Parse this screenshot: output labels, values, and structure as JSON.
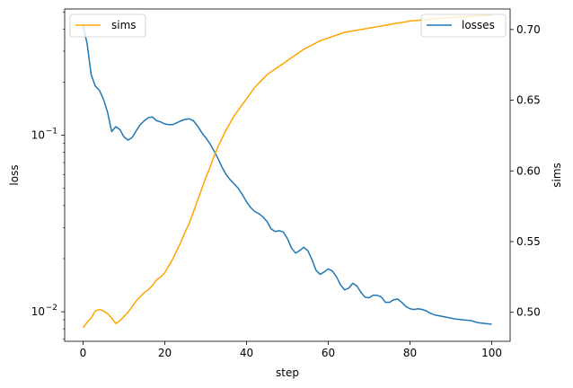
{
  "chart_data": {
    "type": "line",
    "title": "",
    "xlabel": "step",
    "ylabel_left": "loss",
    "ylabel_right": "sims",
    "xlim": [
      -4.5,
      104.5
    ],
    "xticks": [
      0,
      20,
      40,
      60,
      80,
      100
    ],
    "left_axis": {
      "scale": "log",
      "lim": [
        0.0068,
        0.52
      ],
      "major_ticks": [
        0.01,
        0.1
      ],
      "major_tick_labels": [
        "10^-2",
        "10^-1"
      ],
      "minor_ticks": [
        0.007,
        0.008,
        0.009,
        0.02,
        0.03,
        0.04,
        0.05,
        0.06,
        0.07,
        0.08,
        0.09,
        0.2,
        0.3,
        0.4,
        0.5
      ]
    },
    "right_axis": {
      "scale": "linear",
      "lim": [
        0.4795,
        0.7145
      ],
      "ticks": [
        0.5,
        0.55,
        0.6,
        0.65,
        0.7
      ],
      "tick_labels": [
        "0.50",
        "0.55",
        "0.60",
        "0.65",
        "0.70"
      ]
    },
    "grid": false,
    "series": [
      {
        "name": "losses",
        "axis": "left",
        "color": "#1f77b4",
        "x": [
          0,
          1,
          2,
          3,
          4,
          5,
          6,
          7,
          8,
          9,
          10,
          11,
          12,
          13,
          14,
          15,
          16,
          17,
          18,
          19,
          20,
          21,
          22,
          23,
          24,
          25,
          26,
          27,
          28,
          29,
          30,
          31,
          32,
          33,
          34,
          35,
          36,
          37,
          38,
          39,
          40,
          41,
          42,
          43,
          44,
          45,
          46,
          47,
          48,
          49,
          50,
          51,
          52,
          53,
          54,
          55,
          56,
          57,
          58,
          59,
          60,
          61,
          62,
          63,
          64,
          65,
          66,
          67,
          68,
          69,
          70,
          71,
          72,
          73,
          74,
          75,
          76,
          77,
          78,
          79,
          80,
          81,
          82,
          83,
          84,
          85,
          86,
          87,
          88,
          89,
          90,
          91,
          92,
          93,
          94,
          95,
          96,
          97,
          98,
          99,
          100
        ],
        "y": [
          0.42,
          0.33,
          0.22,
          0.19,
          0.18,
          0.16,
          0.135,
          0.105,
          0.112,
          0.108,
          0.098,
          0.094,
          0.097,
          0.106,
          0.115,
          0.121,
          0.126,
          0.127,
          0.121,
          0.119,
          0.116,
          0.115,
          0.115,
          0.118,
          0.121,
          0.123,
          0.124,
          0.121,
          0.113,
          0.104,
          0.097,
          0.09,
          0.082,
          0.074,
          0.066,
          0.06,
          0.056,
          0.053,
          0.05,
          0.046,
          0.042,
          0.039,
          0.037,
          0.036,
          0.0345,
          0.0325,
          0.0295,
          0.0285,
          0.0288,
          0.0283,
          0.026,
          0.023,
          0.0215,
          0.0222,
          0.0232,
          0.0222,
          0.0198,
          0.0172,
          0.0163,
          0.0168,
          0.0175,
          0.017,
          0.0158,
          0.0142,
          0.0133,
          0.0136,
          0.0145,
          0.014,
          0.0129,
          0.0121,
          0.012,
          0.0124,
          0.0124,
          0.0121,
          0.0113,
          0.0113,
          0.0117,
          0.0118,
          0.0113,
          0.0107,
          0.0104,
          0.0103,
          0.0104,
          0.0103,
          0.0101,
          0.0098,
          0.0096,
          0.0095,
          0.0094,
          0.0093,
          0.0092,
          0.0091,
          0.00905,
          0.009,
          0.00895,
          0.0089,
          0.00875,
          0.00865,
          0.0086,
          0.00855,
          0.0085
        ]
      },
      {
        "name": "sims",
        "axis": "right",
        "color": "#ffa500",
        "x": [
          0,
          1,
          2,
          3,
          4,
          5,
          6,
          7,
          8,
          9,
          10,
          11,
          12,
          13,
          14,
          15,
          16,
          17,
          18,
          19,
          20,
          21,
          22,
          23,
          24,
          25,
          26,
          27,
          28,
          29,
          30,
          31,
          32,
          33,
          34,
          35,
          36,
          37,
          38,
          39,
          40,
          41,
          42,
          43,
          44,
          45,
          46,
          47,
          48,
          49,
          50,
          52,
          54,
          56,
          58,
          60,
          62,
          64,
          66,
          68,
          70,
          72,
          74,
          76,
          78,
          80,
          82,
          84,
          86,
          88,
          90,
          92,
          94,
          96,
          98,
          100
        ],
        "y": [
          0.489,
          0.493,
          0.496,
          0.501,
          0.502,
          0.501,
          0.499,
          0.496,
          0.492,
          0.494,
          0.497,
          0.5,
          0.504,
          0.508,
          0.511,
          0.514,
          0.516,
          0.519,
          0.523,
          0.525,
          0.528,
          0.533,
          0.538,
          0.544,
          0.55,
          0.557,
          0.563,
          0.571,
          0.579,
          0.587,
          0.595,
          0.602,
          0.61,
          0.617,
          0.623,
          0.629,
          0.634,
          0.639,
          0.643,
          0.647,
          0.651,
          0.655,
          0.659,
          0.662,
          0.665,
          0.668,
          0.67,
          0.672,
          0.674,
          0.676,
          0.678,
          0.682,
          0.686,
          0.689,
          0.692,
          0.694,
          0.696,
          0.698,
          0.699,
          0.7,
          0.701,
          0.702,
          0.703,
          0.704,
          0.705,
          0.706,
          0.7065,
          0.707,
          0.7075,
          0.708,
          0.7085,
          0.709,
          0.709,
          0.7095,
          0.7098,
          0.71
        ]
      }
    ],
    "legends": [
      {
        "location": "upper left",
        "entries": [
          "sims"
        ]
      },
      {
        "location": "upper right",
        "entries": [
          "losses"
        ]
      }
    ]
  }
}
